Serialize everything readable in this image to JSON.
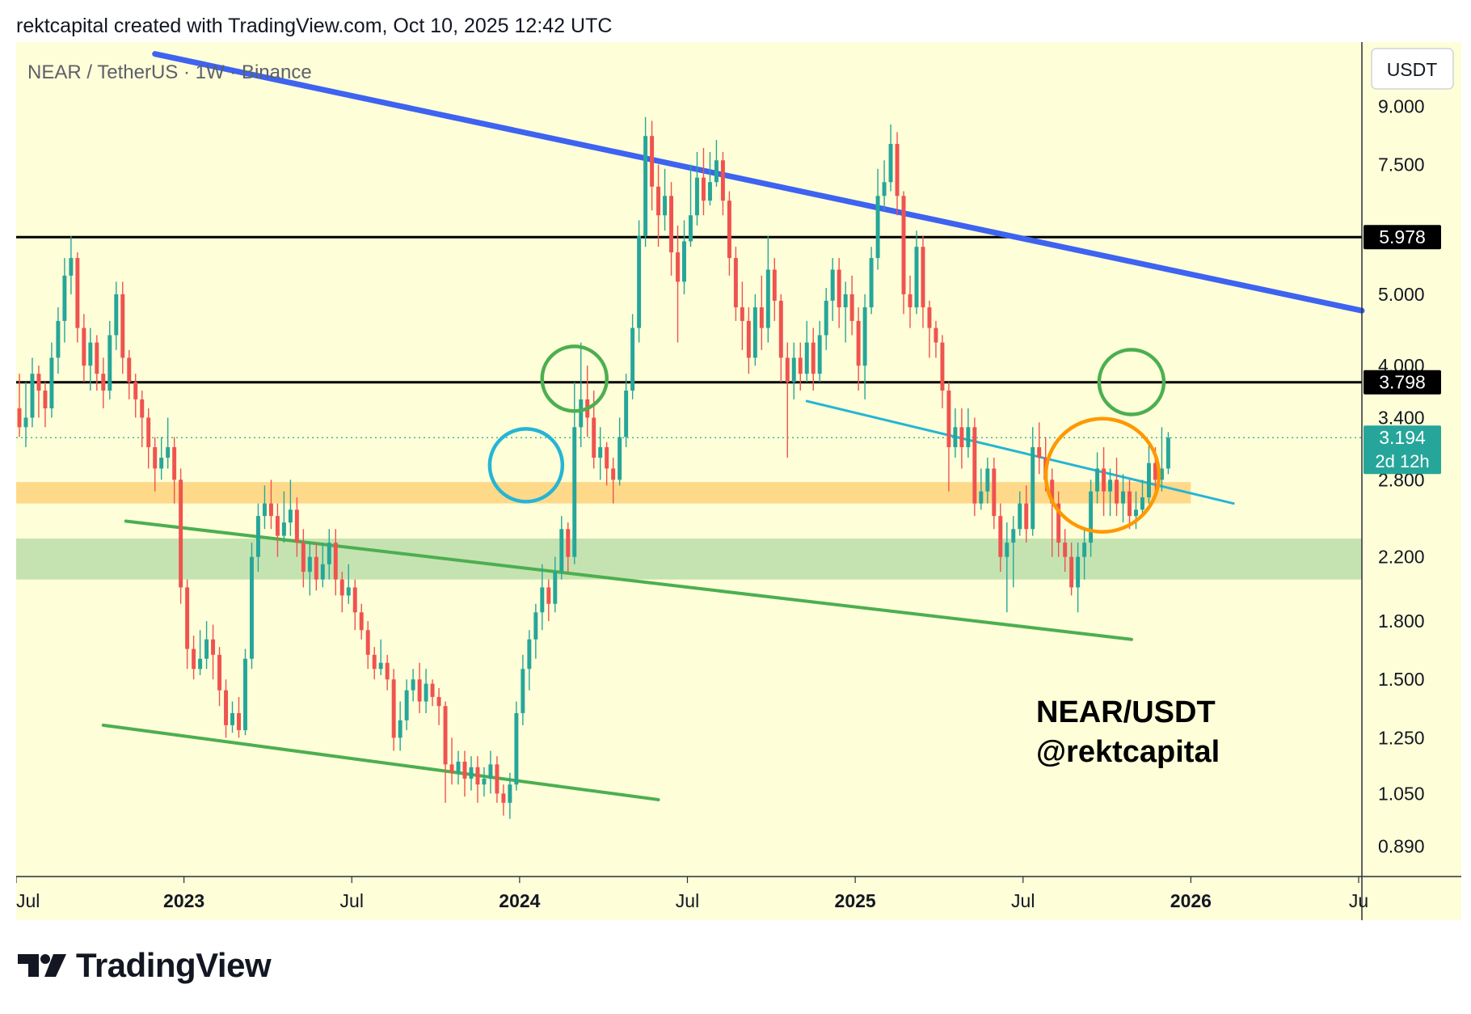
{
  "header": {
    "attribution": "rektcapital created with TradingView.com, Oct 10, 2025 12:42 UTC"
  },
  "footer": {
    "brand": "TradingView"
  },
  "chart_data": {
    "type": "candlestick",
    "title": "NEAR / TetherUS · 1W · Binance",
    "currency_button": "USDT",
    "watermark_lines": [
      "NEAR/USDT",
      "@rektcapital"
    ],
    "scale": "log",
    "y_ticks": [
      "9.000",
      "7.500",
      "5.000",
      "4.000",
      "3.400",
      "2.800",
      "2.200",
      "1.800",
      "1.500",
      "1.250",
      "1.050",
      "0.890"
    ],
    "x_ticks": [
      {
        "label": "Jul",
        "t": 0,
        "bold": false
      },
      {
        "label": "2023",
        "t": 26,
        "bold": true
      },
      {
        "label": "Jul",
        "t": 52,
        "bold": false
      },
      {
        "label": "2024",
        "t": 78,
        "bold": true
      },
      {
        "label": "Jul",
        "t": 104,
        "bold": false
      },
      {
        "label": "2025",
        "t": 130,
        "bold": true
      },
      {
        "label": "Jul",
        "t": 156,
        "bold": false
      },
      {
        "label": "2026",
        "t": 182,
        "bold": true
      },
      {
        "label": "Ju",
        "t": 208,
        "bold": false
      }
    ],
    "x_range": [
      0,
      208.5
    ],
    "y_range": [
      0.81,
      11.0
    ],
    "price_labels": [
      {
        "value": 5.978,
        "text": "5.978",
        "style": "black"
      },
      {
        "value": 3.798,
        "text": "3.798",
        "style": "black"
      },
      {
        "value": 3.194,
        "text": "3.194",
        "sub": "2d 12h",
        "style": "teal"
      }
    ],
    "horizontal_lines": [
      {
        "value": 5.978,
        "color": "#000000"
      },
      {
        "value": 3.798,
        "color": "#000000"
      }
    ],
    "dotted_lines": [
      {
        "value": 3.194,
        "color": "#26a69a"
      }
    ],
    "zones": [
      {
        "from": 2.6,
        "to": 2.78,
        "color": "#ffd98a",
        "t_end": 182
      },
      {
        "from": 2.05,
        "to": 2.33,
        "color": "#c5e3b0",
        "t_end": 208.5
      }
    ],
    "trendlines": [
      {
        "points": [
          [
            21.5,
            10.6
          ],
          [
            208.5,
            4.75
          ]
        ],
        "color": "#3d63f0",
        "width": 7
      },
      {
        "points": [
          [
            17,
            2.46
          ],
          [
            172.8,
            1.7
          ]
        ],
        "color": "#4caf50",
        "width": 4
      },
      {
        "points": [
          [
            13.5,
            1.3
          ],
          [
            99.5,
            1.03
          ]
        ],
        "color": "#4caf50",
        "width": 4
      },
      {
        "points": [
          [
            122.5,
            3.58
          ],
          [
            188.6,
            2.6
          ]
        ],
        "color": "#26b5d4",
        "width": 3
      }
    ],
    "circles": [
      {
        "t": 79,
        "value": 2.93,
        "radius": 45,
        "color": "#26b5d4"
      },
      {
        "t": 86.5,
        "value": 3.84,
        "radius": 40,
        "color": "#4caf50"
      },
      {
        "t": 172.8,
        "value": 3.8,
        "radius": 40,
        "color": "#4caf50"
      },
      {
        "t": 168.3,
        "value": 2.84,
        "radius": 70,
        "color": "#ff9800"
      }
    ],
    "up_color": "#26a69a",
    "down_color": "#ef5350",
    "candles": [
      [
        3.5,
        3.3,
        3.9,
        3.2
      ],
      [
        3.3,
        3.4,
        3.8,
        3.1
      ],
      [
        3.4,
        3.9,
        4.1,
        3.3
      ],
      [
        3.9,
        3.7,
        4.0,
        3.4
      ],
      [
        3.7,
        3.5,
        3.8,
        3.3
      ],
      [
        3.5,
        4.1,
        4.3,
        3.4
      ],
      [
        4.1,
        4.6,
        4.8,
        3.9
      ],
      [
        4.6,
        5.3,
        5.6,
        4.3
      ],
      [
        5.3,
        5.6,
        6.0,
        5.0
      ],
      [
        5.6,
        4.5,
        5.7,
        4.3
      ],
      [
        4.5,
        4.0,
        4.7,
        3.8
      ],
      [
        4.0,
        4.3,
        4.5,
        3.7
      ],
      [
        4.3,
        3.9,
        4.4,
        3.7
      ],
      [
        3.9,
        3.7,
        4.1,
        3.5
      ],
      [
        3.7,
        4.4,
        4.6,
        3.6
      ],
      [
        4.4,
        5.0,
        5.2,
        4.2
      ],
      [
        5.0,
        4.1,
        5.2,
        3.9
      ],
      [
        4.1,
        3.8,
        4.2,
        3.6
      ],
      [
        3.8,
        3.6,
        3.9,
        3.4
      ],
      [
        3.6,
        3.4,
        3.7,
        3.1
      ],
      [
        3.4,
        3.1,
        3.5,
        2.9
      ],
      [
        3.1,
        2.9,
        3.2,
        2.7
      ],
      [
        2.9,
        3.0,
        3.2,
        2.8
      ],
      [
        3.0,
        3.1,
        3.4,
        2.9
      ],
      [
        3.1,
        2.8,
        3.2,
        2.6
      ],
      [
        2.8,
        2.0,
        2.9,
        1.9
      ],
      [
        2.0,
        1.65,
        2.05,
        1.55
      ],
      [
        1.65,
        1.55,
        1.72,
        1.5
      ],
      [
        1.55,
        1.6,
        1.75,
        1.52
      ],
      [
        1.6,
        1.7,
        1.8,
        1.55
      ],
      [
        1.7,
        1.62,
        1.78,
        1.5
      ],
      [
        1.62,
        1.45,
        1.66,
        1.38
      ],
      [
        1.45,
        1.3,
        1.5,
        1.25
      ],
      [
        1.3,
        1.35,
        1.4,
        1.27
      ],
      [
        1.35,
        1.28,
        1.42,
        1.25
      ],
      [
        1.28,
        1.6,
        1.65,
        1.26
      ],
      [
        1.6,
        2.2,
        2.3,
        1.55
      ],
      [
        2.2,
        2.5,
        2.6,
        2.1
      ],
      [
        2.5,
        2.6,
        2.75,
        2.4
      ],
      [
        2.6,
        2.5,
        2.8,
        2.4
      ],
      [
        2.5,
        2.35,
        2.6,
        2.2
      ],
      [
        2.35,
        2.45,
        2.7,
        2.3
      ],
      [
        2.45,
        2.55,
        2.8,
        2.35
      ],
      [
        2.55,
        2.3,
        2.65,
        2.2
      ],
      [
        2.3,
        2.1,
        2.4,
        2.0
      ],
      [
        2.1,
        2.2,
        2.3,
        1.95
      ],
      [
        2.2,
        2.05,
        2.3,
        1.98
      ],
      [
        2.05,
        2.15,
        2.3,
        2.0
      ],
      [
        2.15,
        2.3,
        2.4,
        2.05
      ],
      [
        2.3,
        2.05,
        2.4,
        1.95
      ],
      [
        2.05,
        1.95,
        2.1,
        1.85
      ],
      [
        1.95,
        2.0,
        2.15,
        1.9
      ],
      [
        2.0,
        1.85,
        2.05,
        1.75
      ],
      [
        1.85,
        1.75,
        1.9,
        1.7
      ],
      [
        1.75,
        1.62,
        1.8,
        1.55
      ],
      [
        1.62,
        1.55,
        1.66,
        1.5
      ],
      [
        1.55,
        1.58,
        1.7,
        1.52
      ],
      [
        1.58,
        1.5,
        1.62,
        1.45
      ],
      [
        1.5,
        1.25,
        1.55,
        1.2
      ],
      [
        1.25,
        1.32,
        1.4,
        1.2
      ],
      [
        1.32,
        1.45,
        1.5,
        1.28
      ],
      [
        1.45,
        1.5,
        1.55,
        1.4
      ],
      [
        1.5,
        1.4,
        1.58,
        1.35
      ],
      [
        1.4,
        1.48,
        1.55,
        1.35
      ],
      [
        1.48,
        1.42,
        1.5,
        1.38
      ],
      [
        1.42,
        1.38,
        1.46,
        1.3
      ],
      [
        1.38,
        1.15,
        1.4,
        1.02
      ],
      [
        1.15,
        1.12,
        1.25,
        1.08
      ],
      [
        1.12,
        1.16,
        1.2,
        1.08
      ],
      [
        1.16,
        1.1,
        1.2,
        1.04
      ],
      [
        1.1,
        1.14,
        1.18,
        1.06
      ],
      [
        1.14,
        1.08,
        1.18,
        1.02
      ],
      [
        1.08,
        1.1,
        1.14,
        1.04
      ],
      [
        1.1,
        1.15,
        1.2,
        1.05
      ],
      [
        1.15,
        1.05,
        1.18,
        1.02
      ],
      [
        1.05,
        1.02,
        1.08,
        0.98
      ],
      [
        1.02,
        1.08,
        1.12,
        0.97
      ],
      [
        1.08,
        1.35,
        1.4,
        1.06
      ],
      [
        1.35,
        1.55,
        1.62,
        1.3
      ],
      [
        1.55,
        1.7,
        1.75,
        1.45
      ],
      [
        1.7,
        1.85,
        1.9,
        1.6
      ],
      [
        1.85,
        2.0,
        2.15,
        1.75
      ],
      [
        2.0,
        1.9,
        2.05,
        1.8
      ],
      [
        1.9,
        2.1,
        2.2,
        1.85
      ],
      [
        2.1,
        2.4,
        2.5,
        2.05
      ],
      [
        2.4,
        2.2,
        2.45,
        2.1
      ],
      [
        2.2,
        3.3,
        3.8,
        2.15
      ],
      [
        3.3,
        3.6,
        4.3,
        3.1
      ],
      [
        3.6,
        3.4,
        4.0,
        3.2
      ],
      [
        3.4,
        3.0,
        3.7,
        2.9
      ],
      [
        3.0,
        3.1,
        3.3,
        2.8
      ],
      [
        3.1,
        2.9,
        3.15,
        2.75
      ],
      [
        2.9,
        2.8,
        3.0,
        2.6
      ],
      [
        2.8,
        3.2,
        3.4,
        2.75
      ],
      [
        3.2,
        3.7,
        3.9,
        3.1
      ],
      [
        3.7,
        4.5,
        4.7,
        3.6
      ],
      [
        4.5,
        6.0,
        6.3,
        4.3
      ],
      [
        6.0,
        8.2,
        8.7,
        5.8
      ],
      [
        8.2,
        7.0,
        8.6,
        6.5
      ],
      [
        7.0,
        6.4,
        7.5,
        5.8
      ],
      [
        6.4,
        6.8,
        7.4,
        6.1
      ],
      [
        6.8,
        5.7,
        7.1,
        5.3
      ],
      [
        5.7,
        5.2,
        6.2,
        4.3
      ],
      [
        5.2,
        5.9,
        6.3,
        5.0
      ],
      [
        5.9,
        6.4,
        7.5,
        5.8
      ],
      [
        6.4,
        7.2,
        7.8,
        6.2
      ],
      [
        7.2,
        6.7,
        7.9,
        6.4
      ],
      [
        6.7,
        7.1,
        7.8,
        6.6
      ],
      [
        7.1,
        7.6,
        8.1,
        7.0
      ],
      [
        7.6,
        6.7,
        7.8,
        6.4
      ],
      [
        6.7,
        5.6,
        6.9,
        5.3
      ],
      [
        5.6,
        4.8,
        5.8,
        4.6
      ],
      [
        4.8,
        4.6,
        5.2,
        4.2
      ],
      [
        4.6,
        4.1,
        4.8,
        3.9
      ],
      [
        4.1,
        4.8,
        5.0,
        4.0
      ],
      [
        4.8,
        4.5,
        5.3,
        4.2
      ],
      [
        4.5,
        5.4,
        6.0,
        4.3
      ],
      [
        5.4,
        4.9,
        5.6,
        4.6
      ],
      [
        4.9,
        4.1,
        5.0,
        3.8
      ],
      [
        4.1,
        3.8,
        4.3,
        3.0
      ],
      [
        3.8,
        4.1,
        4.3,
        3.6
      ],
      [
        4.1,
        3.9,
        4.3,
        3.7
      ],
      [
        3.9,
        4.3,
        4.6,
        3.8
      ],
      [
        4.3,
        3.9,
        4.5,
        3.7
      ],
      [
        3.9,
        4.4,
        4.6,
        3.8
      ],
      [
        4.4,
        4.9,
        5.1,
        4.2
      ],
      [
        4.9,
        5.4,
        5.6,
        4.6
      ],
      [
        5.4,
        4.8,
        5.6,
        4.5
      ],
      [
        4.8,
        5.0,
        5.2,
        4.3
      ],
      [
        5.0,
        4.6,
        5.3,
        4.4
      ],
      [
        4.6,
        4.0,
        4.8,
        3.7
      ],
      [
        4.0,
        4.8,
        5.0,
        3.6
      ],
      [
        4.8,
        5.6,
        5.8,
        4.7
      ],
      [
        5.6,
        6.8,
        7.4,
        5.4
      ],
      [
        6.8,
        7.1,
        7.6,
        6.5
      ],
      [
        7.1,
        8.0,
        8.5,
        6.9
      ],
      [
        8.0,
        6.8,
        8.3,
        6.4
      ],
      [
        6.8,
        5.0,
        6.9,
        4.7
      ],
      [
        5.0,
        4.8,
        5.3,
        4.5
      ],
      [
        4.8,
        5.8,
        6.1,
        4.7
      ],
      [
        5.8,
        4.8,
        6.0,
        4.5
      ],
      [
        4.8,
        4.5,
        4.9,
        4.1
      ],
      [
        4.5,
        4.3,
        4.6,
        4.1
      ],
      [
        4.3,
        3.7,
        4.4,
        3.5
      ],
      [
        3.7,
        3.1,
        3.8,
        2.7
      ],
      [
        3.1,
        3.3,
        3.5,
        3.0
      ],
      [
        3.3,
        3.1,
        3.5,
        2.9
      ],
      [
        3.1,
        3.3,
        3.5,
        3.0
      ],
      [
        3.3,
        2.6,
        3.4,
        2.5
      ],
      [
        2.6,
        2.7,
        2.9,
        2.55
      ],
      [
        2.7,
        2.9,
        3.0,
        2.6
      ],
      [
        2.9,
        2.5,
        3.0,
        2.4
      ],
      [
        2.5,
        2.2,
        2.6,
        2.1
      ],
      [
        2.2,
        2.3,
        2.45,
        1.85
      ],
      [
        2.3,
        2.4,
        2.5,
        2.0
      ],
      [
        2.4,
        2.6,
        2.7,
        2.35
      ],
      [
        2.6,
        2.4,
        2.75,
        2.3
      ],
      [
        2.4,
        3.1,
        3.3,
        2.35
      ],
      [
        3.1,
        3.0,
        3.35,
        2.85
      ],
      [
        3.0,
        2.8,
        3.2,
        2.7
      ],
      [
        2.8,
        2.6,
        2.9,
        2.2
      ],
      [
        2.6,
        2.3,
        2.7,
        2.2
      ],
      [
        2.3,
        2.2,
        2.4,
        2.1
      ],
      [
        2.2,
        2.0,
        2.3,
        1.95
      ],
      [
        2.0,
        2.2,
        2.3,
        1.85
      ],
      [
        2.2,
        2.3,
        2.4,
        2.05
      ],
      [
        2.3,
        2.7,
        2.8,
        2.2
      ],
      [
        2.7,
        2.9,
        3.05,
        2.6
      ],
      [
        2.9,
        2.7,
        3.1,
        2.5
      ],
      [
        2.7,
        2.8,
        2.9,
        2.5
      ],
      [
        2.8,
        2.6,
        3.0,
        2.5
      ],
      [
        2.6,
        2.7,
        2.85,
        2.45
      ],
      [
        2.7,
        2.5,
        2.8,
        2.4
      ],
      [
        2.5,
        2.55,
        2.7,
        2.4
      ],
      [
        2.55,
        2.65,
        2.8,
        2.5
      ],
      [
        2.65,
        2.95,
        3.15,
        2.6
      ],
      [
        2.95,
        2.8,
        3.1,
        2.7
      ],
      [
        2.8,
        2.9,
        3.3,
        2.7
      ],
      [
        2.9,
        3.194,
        3.25,
        2.85
      ]
    ]
  }
}
